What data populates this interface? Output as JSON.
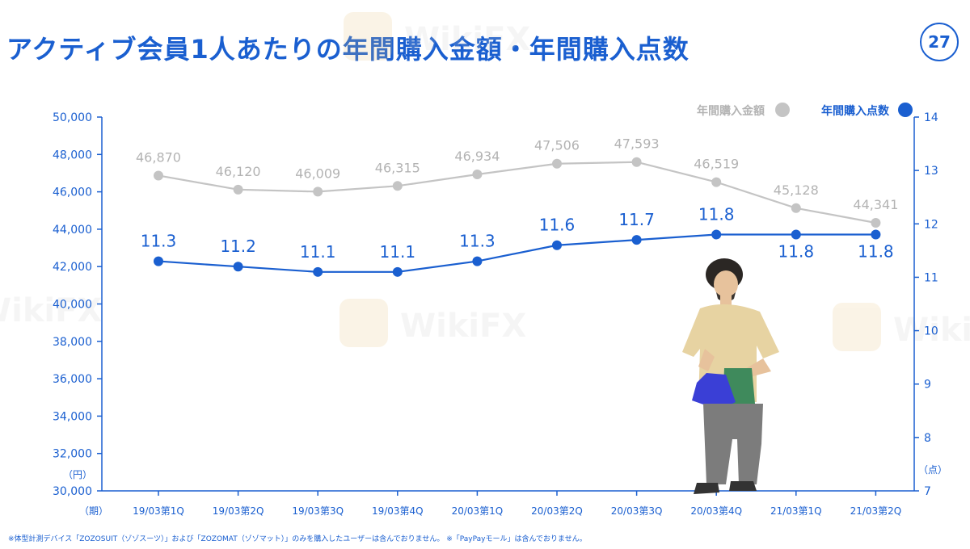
{
  "slide": {
    "title": "アクティブ会員1人あたりの年間購入金額・年間購入点数",
    "page_number": "27",
    "footnote": "※体型計測デバイス「ZOZOSUIT（ゾゾスーツ）」および「ZOZOMAT（ゾゾマット）」のみを購入したユーザーは含んでおりません。 ※「PayPayモール」は含んでおりません。",
    "watermark_text": "WikiFX",
    "colors": {
      "accent": "#1a5fd0",
      "gray_series": "#c4c4c4",
      "gray_label": "#b3b3b3"
    },
    "image": {
      "description": "man-holding-shopping-bags"
    }
  },
  "chart_data": {
    "type": "line",
    "categories": [
      "19/03第1Q",
      "19/03第2Q",
      "19/03第3Q",
      "19/03第4Q",
      "20/03第1Q",
      "20/03第2Q",
      "20/03第3Q",
      "20/03第4Q",
      "21/03第1Q",
      "21/03第2Q"
    ],
    "series": [
      {
        "name": "年間購入金額",
        "axis": "left",
        "color": "#c4c4c4",
        "values": [
          46870,
          46120,
          46009,
          46315,
          46934,
          47506,
          47593,
          46519,
          45128,
          44341
        ],
        "labels": [
          "46,870",
          "46,120",
          "46,009",
          "46,315",
          "46,934",
          "47,506",
          "47,593",
          "46,519",
          "45,128",
          "44,341"
        ]
      },
      {
        "name": "年間購入点数",
        "axis": "right",
        "color": "#1a5fd0",
        "values": [
          11.3,
          11.2,
          11.1,
          11.1,
          11.3,
          11.6,
          11.7,
          11.8,
          11.8,
          11.8
        ],
        "labels": [
          "11.3",
          "11.2",
          "11.1",
          "11.1",
          "11.3",
          "11.6",
          "11.7",
          "11.8",
          "11.8",
          "11.8"
        ]
      }
    ],
    "y_left": {
      "unit": "（円）",
      "range": [
        30000,
        50000
      ],
      "ticks": [
        "30,000",
        "32,000",
        "34,000",
        "36,000",
        "38,000",
        "40,000",
        "42,000",
        "44,000",
        "46,000",
        "48,000",
        "50,000"
      ]
    },
    "y_right": {
      "unit": "（点）",
      "range": [
        7,
        14
      ],
      "ticks": [
        "7",
        "8",
        "9",
        "10",
        "11",
        "12",
        "13",
        "14"
      ]
    },
    "x_unit": "（期）",
    "legend_position": "top-right",
    "grid": false
  }
}
